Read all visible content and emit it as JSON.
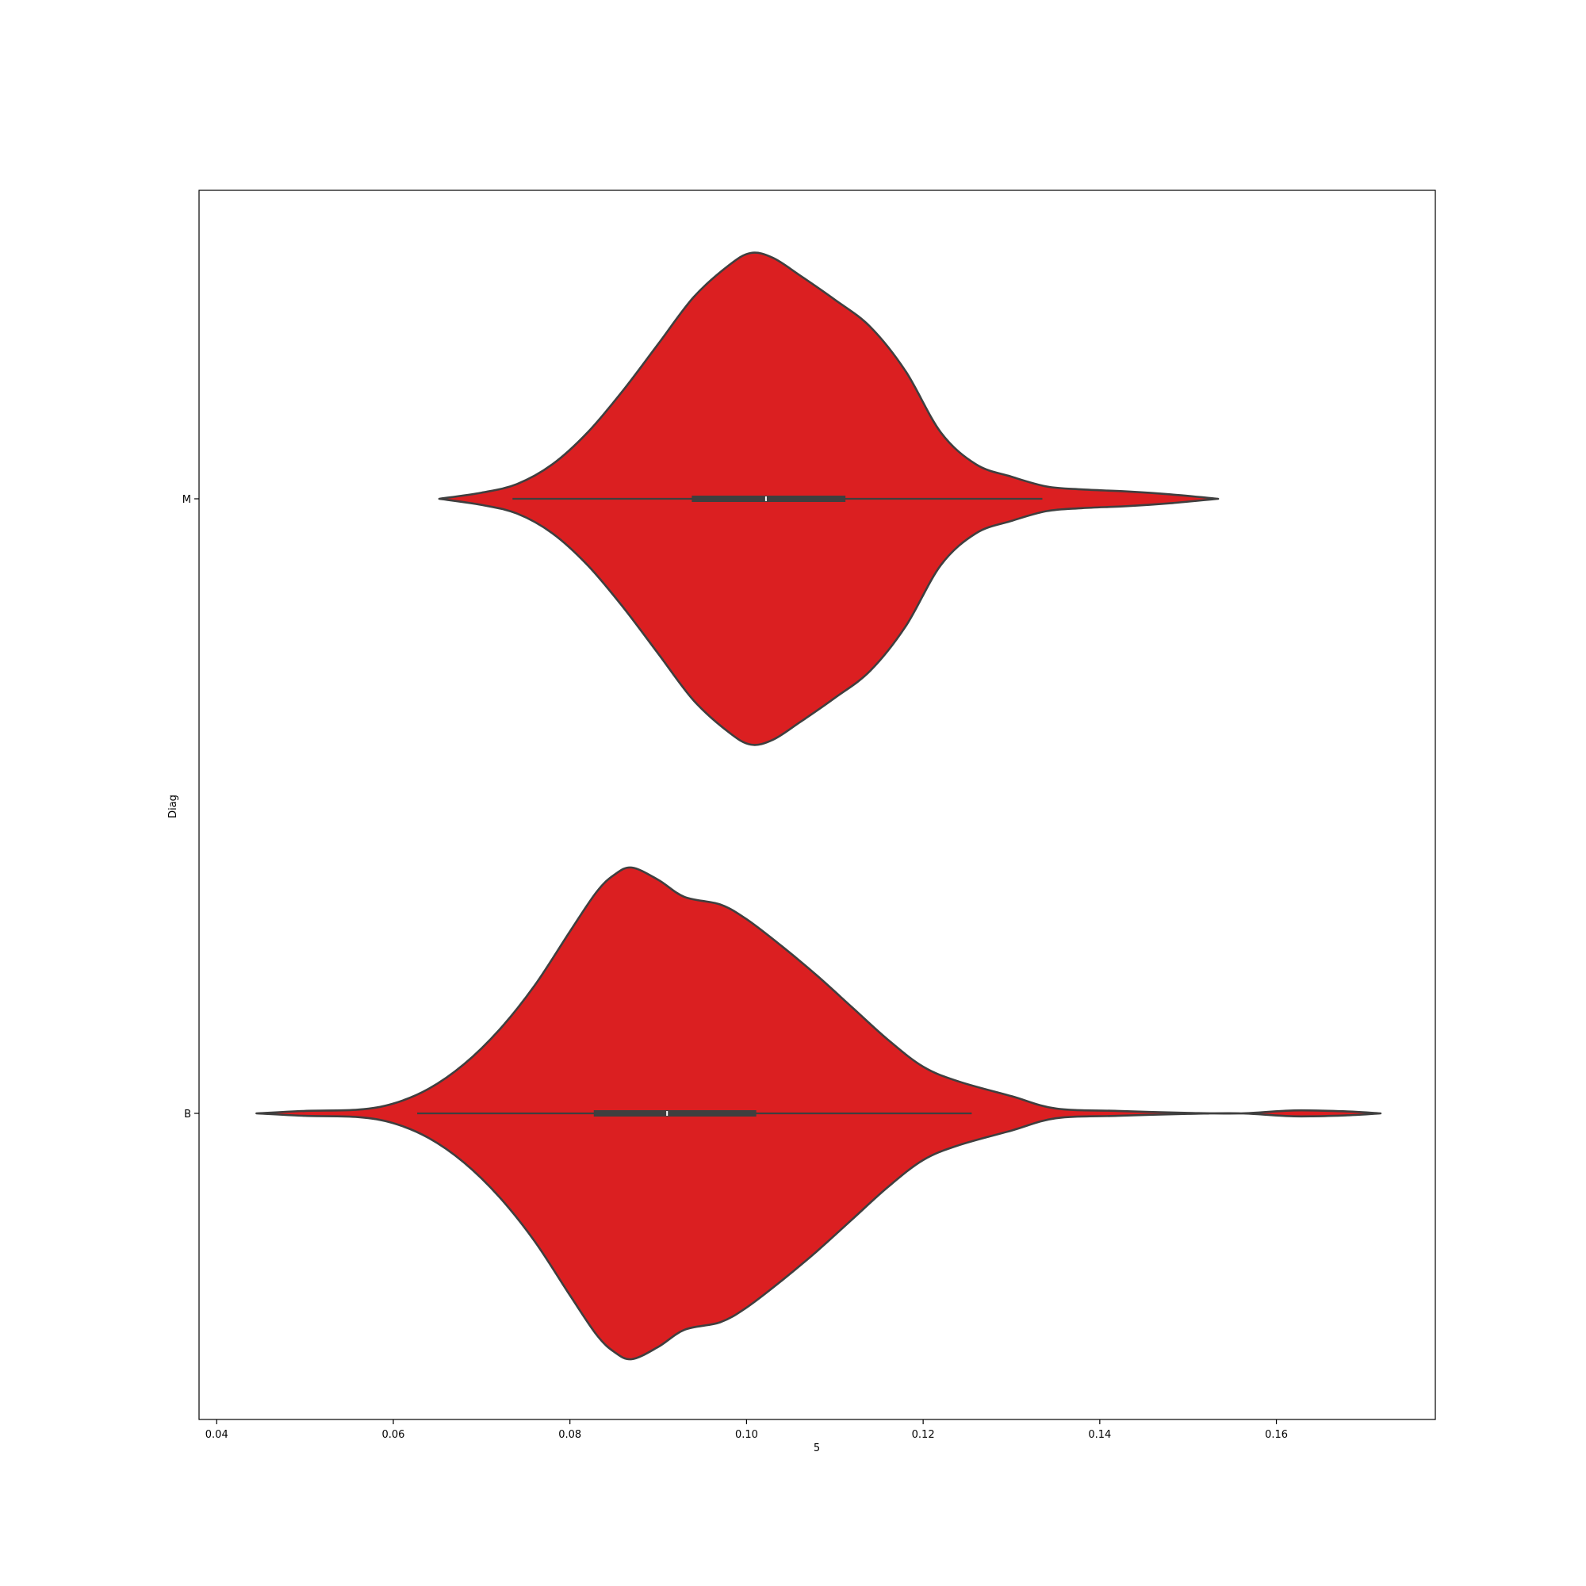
{
  "chart_data": {
    "type": "violin",
    "orientation": "horizontal",
    "xlabel": "5",
    "ylabel": "Diag",
    "xlim": [
      0.038,
      0.178
    ],
    "xticks": [
      0.04,
      0.06,
      0.08,
      0.1,
      0.12,
      0.14,
      0.16
    ],
    "xtick_labels": [
      "0.04",
      "0.06",
      "0.08",
      "0.10",
      "0.12",
      "0.14",
      "0.16"
    ],
    "categories": [
      "M",
      "B"
    ],
    "grid": false,
    "fill_color": "#db1f21",
    "edge_color": "#3f3f3f",
    "violins": [
      {
        "category": "M",
        "min": 0.0652,
        "max": 0.1534,
        "whisker_low": 0.0735,
        "q1": 0.0938,
        "median": 0.1022,
        "q3": 0.1112,
        "whisker_high": 0.1335,
        "density": [
          [
            0.0652,
            0.0
          ],
          [
            0.07,
            0.025
          ],
          [
            0.074,
            0.06
          ],
          [
            0.078,
            0.14
          ],
          [
            0.082,
            0.27
          ],
          [
            0.086,
            0.44
          ],
          [
            0.09,
            0.63
          ],
          [
            0.094,
            0.82
          ],
          [
            0.098,
            0.95
          ],
          [
            0.1005,
            1.0
          ],
          [
            0.103,
            0.98
          ],
          [
            0.106,
            0.91
          ],
          [
            0.11,
            0.81
          ],
          [
            0.114,
            0.7
          ],
          [
            0.118,
            0.52
          ],
          [
            0.122,
            0.27
          ],
          [
            0.126,
            0.14
          ],
          [
            0.13,
            0.09
          ],
          [
            0.134,
            0.05
          ],
          [
            0.138,
            0.038
          ],
          [
            0.143,
            0.03
          ],
          [
            0.148,
            0.018
          ],
          [
            0.1534,
            0.0
          ]
        ]
      },
      {
        "category": "B",
        "min": 0.0445,
        "max": 0.1718,
        "whisker_low": 0.0627,
        "q1": 0.0827,
        "median": 0.091,
        "q3": 0.1011,
        "whisker_high": 0.1255,
        "density": [
          [
            0.0445,
            0.0
          ],
          [
            0.05,
            0.01
          ],
          [
            0.056,
            0.015
          ],
          [
            0.06,
            0.04
          ],
          [
            0.064,
            0.1
          ],
          [
            0.068,
            0.2
          ],
          [
            0.072,
            0.34
          ],
          [
            0.076,
            0.52
          ],
          [
            0.08,
            0.74
          ],
          [
            0.083,
            0.9
          ],
          [
            0.085,
            0.97
          ],
          [
            0.087,
            1.0
          ],
          [
            0.09,
            0.95
          ],
          [
            0.093,
            0.88
          ],
          [
            0.097,
            0.85
          ],
          [
            0.1,
            0.79
          ],
          [
            0.104,
            0.68
          ],
          [
            0.108,
            0.56
          ],
          [
            0.112,
            0.43
          ],
          [
            0.116,
            0.3
          ],
          [
            0.12,
            0.19
          ],
          [
            0.124,
            0.13
          ],
          [
            0.13,
            0.07
          ],
          [
            0.135,
            0.02
          ],
          [
            0.142,
            0.01
          ],
          [
            0.15,
            0.002
          ],
          [
            0.156,
            0.0
          ],
          [
            0.162,
            0.012
          ],
          [
            0.168,
            0.008
          ],
          [
            0.1718,
            0.0
          ]
        ]
      }
    ]
  }
}
